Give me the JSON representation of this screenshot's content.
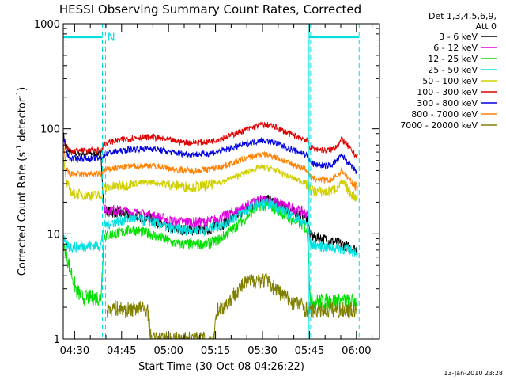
{
  "chart_data": {
    "type": "line",
    "title": "HESSI Observing Summary Count Rates, Corrected",
    "xlabel": "Start Time (30-Oct-08 04:26:22)",
    "ylabel": "Corrected Count Rate (s",
    "ylabel_sup1": "-1",
    "ylabel_mid": " detector",
    "ylabel_sup2": "-1",
    "ylabel_end": ")",
    "x_unit": "minutes after 04:26:22",
    "x_tick_labels": [
      "04:30",
      "04:45",
      "05:00",
      "05:15",
      "05:30",
      "05:45",
      "06:00"
    ],
    "x_tick_minutes": [
      3.63,
      18.63,
      33.63,
      48.63,
      63.63,
      78.63,
      93.63
    ],
    "xlim": [
      0,
      101
    ],
    "y_scale": "log",
    "ylim": [
      1,
      1000
    ],
    "y_tick_labels": [
      "1",
      "10",
      "100",
      "1000"
    ],
    "y_tick_values": [
      1,
      10,
      100,
      1000
    ],
    "legend_header": [
      "Det 1,3,4,5,6,9,",
      "Att 0"
    ],
    "legend_position": "right",
    "series": [
      {
        "name": "3 - 6 keV",
        "color": "#000000",
        "points": [
          [
            0,
            90
          ],
          [
            1,
            66
          ],
          [
            2,
            60
          ],
          [
            5,
            58
          ],
          [
            11,
            58
          ],
          [
            12,
            60
          ],
          [
            13,
            17
          ],
          [
            16,
            16
          ],
          [
            22,
            15
          ],
          [
            28,
            14
          ],
          [
            32,
            12
          ],
          [
            36,
            11
          ],
          [
            41,
            11
          ],
          [
            46,
            11
          ],
          [
            50,
            12
          ],
          [
            54,
            14
          ],
          [
            58,
            17
          ],
          [
            61,
            19
          ],
          [
            63,
            21
          ],
          [
            66,
            21
          ],
          [
            69,
            19
          ],
          [
            72,
            17
          ],
          [
            77,
            15
          ],
          [
            78,
            14
          ],
          [
            79,
            9.5
          ],
          [
            83,
            9
          ],
          [
            86,
            8.5
          ],
          [
            89,
            8
          ],
          [
            91,
            7.5
          ],
          [
            93,
            7.2
          ],
          [
            94,
            7
          ]
        ]
      },
      {
        "name": "6 - 12 keV",
        "color": "#e000e0",
        "points": [
          [
            13,
            17
          ],
          [
            16,
            17
          ],
          [
            22,
            16
          ],
          [
            28,
            15
          ],
          [
            32,
            14
          ],
          [
            36,
            13
          ],
          [
            41,
            13
          ],
          [
            46,
            13
          ],
          [
            50,
            14
          ],
          [
            54,
            16
          ],
          [
            58,
            18
          ],
          [
            61,
            20
          ],
          [
            63,
            21
          ],
          [
            66,
            21
          ],
          [
            69,
            19.5
          ],
          [
            72,
            18
          ],
          [
            77,
            16
          ],
          [
            78,
            15
          ]
        ]
      },
      {
        "name": "12 - 25 keV",
        "color": "#00e000",
        "points": [
          [
            0,
            8
          ],
          [
            2,
            5
          ],
          [
            4,
            3
          ],
          [
            6,
            2.5
          ],
          [
            12,
            2.5
          ],
          [
            13,
            9.5
          ],
          [
            16,
            10
          ],
          [
            22,
            11
          ],
          [
            28,
            10
          ],
          [
            32,
            9
          ],
          [
            36,
            8
          ],
          [
            41,
            8
          ],
          [
            46,
            8
          ],
          [
            50,
            9
          ],
          [
            54,
            11
          ],
          [
            58,
            14
          ],
          [
            61,
            17
          ],
          [
            63,
            18.5
          ],
          [
            66,
            18.5
          ],
          [
            69,
            16.5
          ],
          [
            72,
            14
          ],
          [
            77,
            12
          ],
          [
            78,
            10
          ],
          [
            79,
            2.3
          ],
          [
            94,
            2.3
          ]
        ]
      },
      {
        "name": "25 - 50 keV",
        "color": "#00e0e0",
        "points": [
          [
            0,
            9
          ],
          [
            1,
            8
          ],
          [
            2,
            7.5
          ],
          [
            12,
            7.8
          ],
          [
            13,
            12
          ],
          [
            16,
            13
          ],
          [
            22,
            14
          ],
          [
            28,
            13
          ],
          [
            32,
            12
          ],
          [
            36,
            11
          ],
          [
            41,
            11
          ],
          [
            46,
            11
          ],
          [
            50,
            12
          ],
          [
            54,
            14
          ],
          [
            58,
            16.5
          ],
          [
            61,
            18.5
          ],
          [
            63,
            19.5
          ],
          [
            66,
            19.5
          ],
          [
            69,
            17.5
          ],
          [
            72,
            15.5
          ],
          [
            77,
            13
          ],
          [
            78,
            12
          ],
          [
            79,
            8
          ],
          [
            84,
            7.5
          ],
          [
            88,
            7.3
          ],
          [
            92,
            7
          ],
          [
            94,
            6.8
          ]
        ]
      },
      {
        "name": "50 - 100 keV",
        "color": "#d0d000",
        "points": [
          [
            0,
            55
          ],
          [
            1,
            30
          ],
          [
            3,
            24
          ],
          [
            12,
            23
          ],
          [
            13,
            27
          ],
          [
            16,
            28
          ],
          [
            22,
            30
          ],
          [
            28,
            31
          ],
          [
            32,
            30
          ],
          [
            36,
            29
          ],
          [
            41,
            28
          ],
          [
            46,
            29
          ],
          [
            50,
            31
          ],
          [
            54,
            34
          ],
          [
            58,
            38
          ],
          [
            61,
            41
          ],
          [
            63,
            43
          ],
          [
            66,
            42
          ],
          [
            69,
            39
          ],
          [
            72,
            35
          ],
          [
            77,
            31
          ],
          [
            78,
            29
          ],
          [
            79,
            26
          ],
          [
            84,
            25
          ],
          [
            86,
            26
          ],
          [
            88,
            29
          ],
          [
            89,
            31
          ],
          [
            90,
            29
          ],
          [
            92,
            24
          ],
          [
            94,
            22
          ]
        ]
      },
      {
        "name": "100 - 300 keV",
        "color": "#e00000",
        "points": [
          [
            0,
            80
          ],
          [
            1,
            70
          ],
          [
            2,
            62
          ],
          [
            12,
            62
          ],
          [
            13,
            72
          ],
          [
            16,
            76
          ],
          [
            22,
            82
          ],
          [
            28,
            84
          ],
          [
            32,
            80
          ],
          [
            36,
            76
          ],
          [
            41,
            74
          ],
          [
            46,
            75
          ],
          [
            50,
            80
          ],
          [
            54,
            88
          ],
          [
            58,
            97
          ],
          [
            61,
            104
          ],
          [
            63,
            110
          ],
          [
            66,
            108
          ],
          [
            69,
            100
          ],
          [
            72,
            90
          ],
          [
            77,
            80
          ],
          [
            78,
            76
          ],
          [
            79,
            66
          ],
          [
            84,
            62
          ],
          [
            86,
            64
          ],
          [
            88,
            72
          ],
          [
            89,
            80
          ],
          [
            90,
            74
          ],
          [
            92,
            62
          ],
          [
            94,
            54
          ]
        ]
      },
      {
        "name": "300 - 800 keV",
        "color": "#0000e0",
        "points": [
          [
            0,
            85
          ],
          [
            1,
            60
          ],
          [
            2,
            52
          ],
          [
            12,
            52
          ],
          [
            13,
            57
          ],
          [
            16,
            60
          ],
          [
            22,
            64
          ],
          [
            28,
            65
          ],
          [
            32,
            62
          ],
          [
            36,
            59
          ],
          [
            41,
            57
          ],
          [
            46,
            58
          ],
          [
            50,
            61
          ],
          [
            54,
            66
          ],
          [
            58,
            71
          ],
          [
            61,
            75
          ],
          [
            63,
            78
          ],
          [
            66,
            76
          ],
          [
            69,
            71
          ],
          [
            72,
            65
          ],
          [
            77,
            58
          ],
          [
            78,
            55
          ],
          [
            79,
            47
          ],
          [
            84,
            44
          ],
          [
            86,
            46
          ],
          [
            88,
            52
          ],
          [
            89,
            56
          ],
          [
            90,
            52
          ],
          [
            92,
            44
          ],
          [
            94,
            38
          ]
        ]
      },
      {
        "name": "800 - 7000 keV",
        "color": "#ff8000",
        "points": [
          [
            0,
            70
          ],
          [
            1,
            42
          ],
          [
            2,
            37
          ],
          [
            12,
            37
          ],
          [
            13,
            40
          ],
          [
            16,
            42
          ],
          [
            22,
            44
          ],
          [
            28,
            45
          ],
          [
            32,
            43
          ],
          [
            36,
            41
          ],
          [
            41,
            40
          ],
          [
            46,
            41
          ],
          [
            50,
            43
          ],
          [
            54,
            47
          ],
          [
            58,
            52
          ],
          [
            61,
            55
          ],
          [
            63,
            57
          ],
          [
            66,
            56
          ],
          [
            69,
            52
          ],
          [
            72,
            47
          ],
          [
            77,
            42
          ],
          [
            78,
            40
          ],
          [
            79,
            34
          ],
          [
            84,
            32
          ],
          [
            86,
            33
          ],
          [
            88,
            37
          ],
          [
            89,
            40
          ],
          [
            90,
            37
          ],
          [
            92,
            31
          ],
          [
            94,
            28
          ]
        ]
      },
      {
        "name": "7000 - 20000 keV",
        "color": "#808000",
        "points": [
          [
            14,
            1.9
          ],
          [
            16,
            2
          ],
          [
            20,
            1.9
          ],
          [
            24,
            2
          ],
          [
            27,
            1.9
          ],
          [
            28,
            1
          ],
          [
            38,
            1
          ],
          [
            48,
            1
          ],
          [
            49,
            1.9
          ],
          [
            51,
            2
          ],
          [
            53,
            2.3
          ],
          [
            55,
            2.8
          ],
          [
            58,
            3.4
          ],
          [
            62,
            3.7
          ],
          [
            65,
            3.6
          ],
          [
            68,
            3
          ],
          [
            72,
            2.4
          ],
          [
            76,
            2.1
          ],
          [
            78,
            1.9
          ],
          [
            79,
            1.9
          ],
          [
            84,
            1.9
          ],
          [
            89,
            1.9
          ],
          [
            94,
            1.9
          ]
        ]
      }
    ],
    "annotations": {
      "attenuator_marks": [
        {
          "start": 0,
          "end": 12.5,
          "level": 750
        },
        {
          "start": 78.5,
          "end": 94.5,
          "level": 750
        }
      ],
      "vertical_dashed_minutes": [
        12.5,
        13.5,
        78.5,
        79.0,
        94.5
      ],
      "vertical_solid_minutes": [
        78.5
      ],
      "n_label": "N",
      "n_label_minute": 13.6
    },
    "footer_date": "13-Jan-2010 23:28"
  }
}
